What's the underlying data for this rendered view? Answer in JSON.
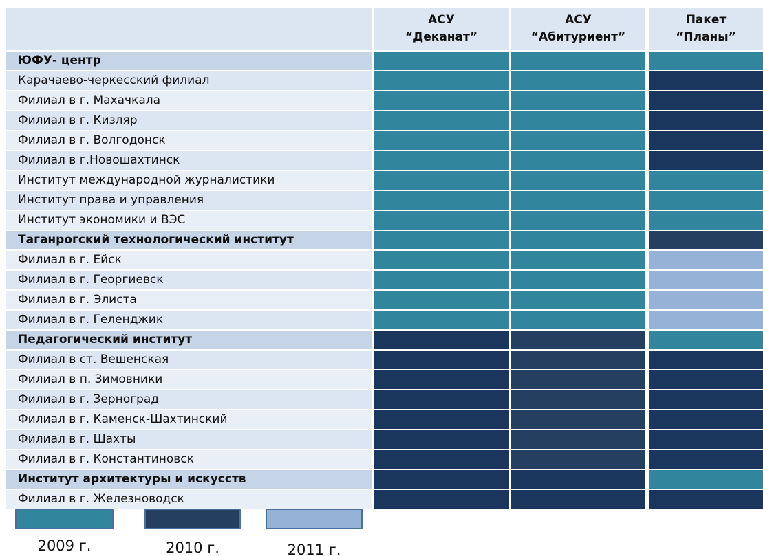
{
  "header": {
    "columns": [
      {
        "lines": [
          "АСУ",
          "“Деканат”"
        ]
      },
      {
        "lines": [
          "АСУ",
          "“Абитуриент”"
        ]
      },
      {
        "lines": [
          "Пакет",
          "“Планы”"
        ]
      }
    ]
  },
  "rows": [
    {
      "label": "ЮФУ- центр",
      "bold": true,
      "cells": [
        "#31859c",
        "#31859c",
        "#31859c"
      ]
    },
    {
      "label": "Карачаево-черкесский филиал",
      "bold": false,
      "cells": [
        "#31859c",
        "#31859c",
        "#1b365d"
      ]
    },
    {
      "label": "Филиал в г. Махачкала",
      "bold": false,
      "cells": [
        "#31859c",
        "#31859c",
        "#1b365d"
      ]
    },
    {
      "label": "Филиал в г. Кизляр",
      "bold": false,
      "cells": [
        "#31859c",
        "#31859c",
        "#1b365d"
      ]
    },
    {
      "label": "Филиал в г. Волгодонск",
      "bold": false,
      "cells": [
        "#31859c",
        "#31859c",
        "#1b365d"
      ]
    },
    {
      "label": "Филиал в г.Новошахтинск",
      "bold": false,
      "cells": [
        "#31859c",
        "#31859c",
        "#1b365d"
      ]
    },
    {
      "label": "Институт международной журналистики",
      "bold": false,
      "cells": [
        "#31859c",
        "#31859c",
        "#31859c"
      ]
    },
    {
      "label": "Институт права и управления",
      "bold": false,
      "cells": [
        "#31859c",
        "#31859c",
        "#31859c"
      ]
    },
    {
      "label": "Институт экономики и ВЭС",
      "bold": false,
      "cells": [
        "#31859c",
        "#31859c",
        "#31859c"
      ]
    },
    {
      "label": "Таганрогский технологический институт",
      "bold": true,
      "cells": [
        "#31859c",
        "#31859c",
        "#243f60"
      ]
    },
    {
      "label": "Филиал в г. Ейск",
      "bold": false,
      "cells": [
        "#31859c",
        "#31859c",
        "#95b3d7"
      ]
    },
    {
      "label": "Филиал в г. Георгиевск",
      "bold": false,
      "cells": [
        "#31859c",
        "#31859c",
        "#95b3d7"
      ]
    },
    {
      "label": "Филиал в г. Элиста",
      "bold": false,
      "cells": [
        "#31859c",
        "#31859c",
        "#95b3d7"
      ]
    },
    {
      "label": "Филиал в г. Геленджик",
      "bold": false,
      "cells": [
        "#31859c",
        "#31859c",
        "#95b3d7"
      ]
    },
    {
      "label": "Педагогический институт",
      "bold": true,
      "cells": [
        "#1b365d",
        "#243f60",
        "#31859c"
      ]
    },
    {
      "label": "Филиал в ст. Вешенская",
      "bold": false,
      "cells": [
        "#1b365d",
        "#243f60",
        "#1b365d"
      ]
    },
    {
      "label": "Филиал в п. Зимовники",
      "bold": false,
      "cells": [
        "#1b365d",
        "#243f60",
        "#1b365d"
      ]
    },
    {
      "label": "Филиал в г. Зерноград",
      "bold": false,
      "cells": [
        "#1b365d",
        "#243f60",
        "#1b365d"
      ]
    },
    {
      "label": "Филиал в г. Каменск-Шахтинский",
      "bold": false,
      "cells": [
        "#1b365d",
        "#243f60",
        "#1b365d"
      ]
    },
    {
      "label": "Филиал в г. Шахты",
      "bold": false,
      "cells": [
        "#1b365d",
        "#243f60",
        "#1b365d"
      ]
    },
    {
      "label": "Филиал в г. Константиновск",
      "bold": false,
      "cells": [
        "#1b365d",
        "#243f60",
        "#1b365d"
      ]
    },
    {
      "label": "Институт архитектуры и искусств",
      "bold": true,
      "cells": [
        "#1b365d",
        "#1b365d",
        "#31859c"
      ]
    },
    {
      "label": "Филиал в г. Железноводск",
      "bold": false,
      "cells": [
        "#1b365d",
        "#1b365d",
        "#1b365d"
      ]
    }
  ],
  "legend": [
    {
      "label": "2009 г.",
      "color": "#31859c"
    },
    {
      "label": "2010 г.",
      "color": "#243f60"
    },
    {
      "label": "2011 г.",
      "color": "#95b3d7"
    }
  ]
}
